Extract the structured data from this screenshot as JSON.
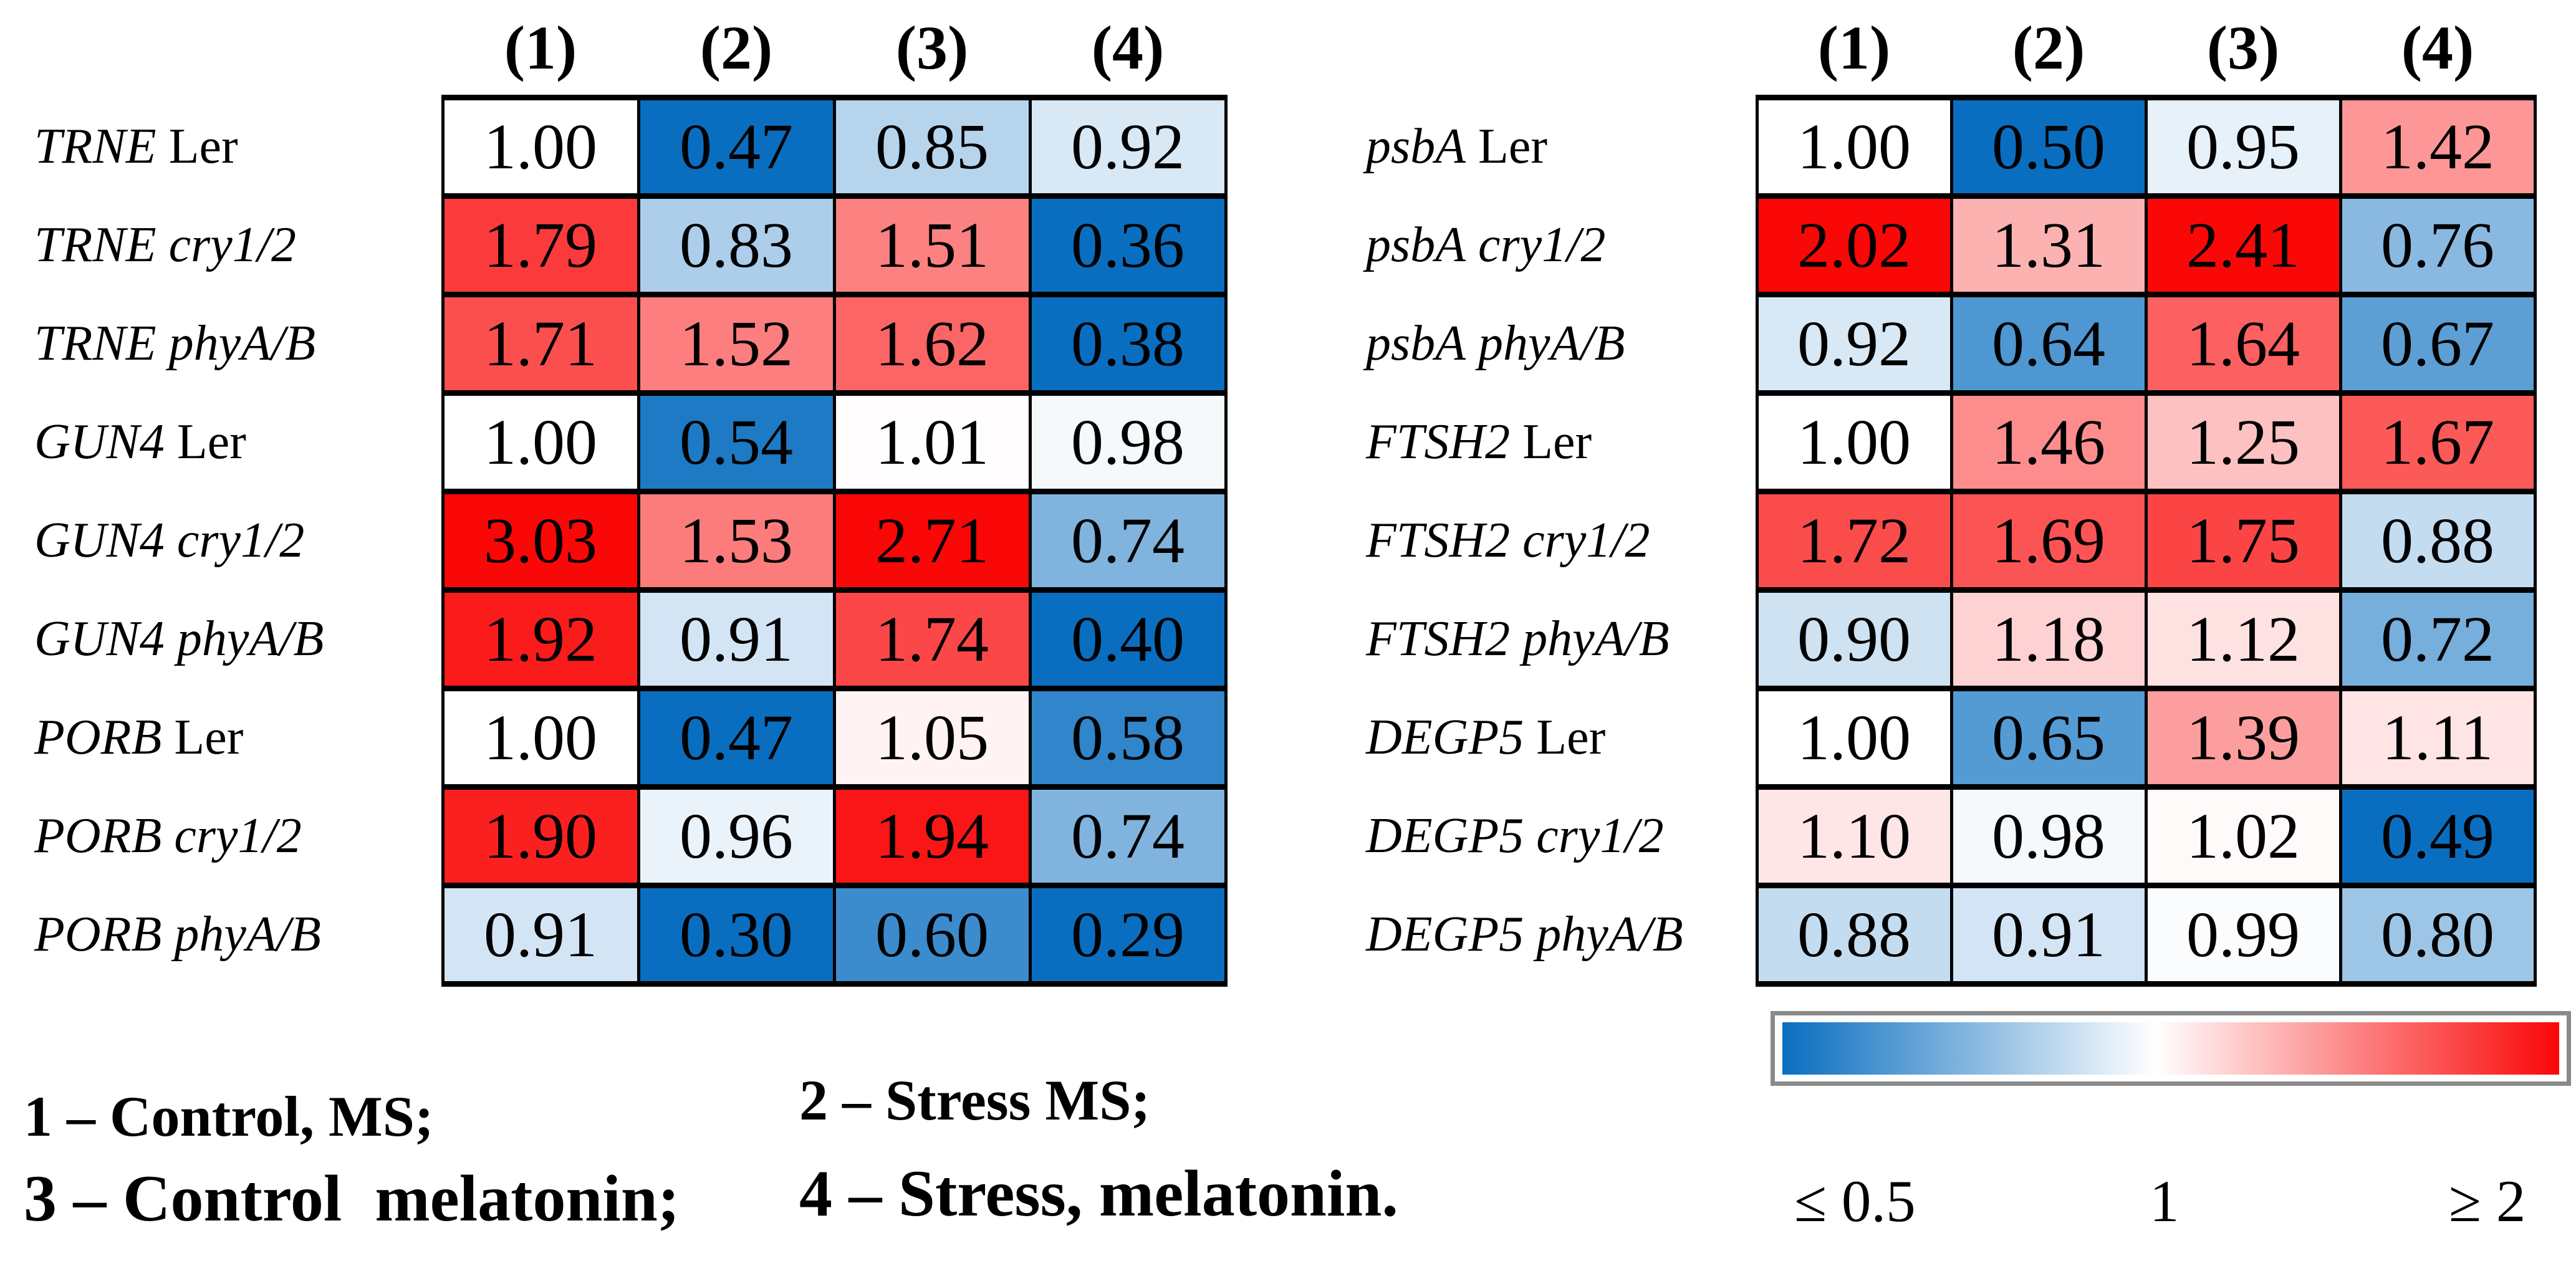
{
  "chart_data": {
    "type": "heatmap",
    "columns": [
      "(1)",
      "(2)",
      "(3)",
      "(4)"
    ],
    "panels": [
      {
        "name": "left",
        "rows": [
          {
            "gene": "TRNE",
            "genotype": "Ler",
            "values": [
              "1.00",
              "0.47",
              "0.85",
              "0.92"
            ]
          },
          {
            "gene": "TRNE",
            "genotype": "cry1/2",
            "values": [
              "1.79",
              "0.83",
              "1.51",
              "0.36"
            ]
          },
          {
            "gene": "TRNE",
            "genotype": "phyA/B",
            "values": [
              "1.71",
              "1.52",
              "1.62",
              "0.38"
            ]
          },
          {
            "gene": "GUN4",
            "genotype": "Ler",
            "values": [
              "1.00",
              "0.54",
              "1.01",
              "0.98"
            ]
          },
          {
            "gene": "GUN4",
            "genotype": "cry1/2",
            "values": [
              "3.03",
              "1.53",
              "2.71",
              "0.74"
            ]
          },
          {
            "gene": "GUN4",
            "genotype": "phyA/B",
            "values": [
              "1.92",
              "0.91",
              "1.74",
              "0.40"
            ]
          },
          {
            "gene": "PORB",
            "genotype": "Ler",
            "values": [
              "1.00",
              "0.47",
              "1.05",
              "0.58"
            ]
          },
          {
            "gene": "PORB",
            "genotype": "cry1/2",
            "values": [
              "1.90",
              "0.96",
              "1.94",
              "0.74"
            ]
          },
          {
            "gene": "PORB",
            "genotype": "phyA/B",
            "values": [
              "0.91",
              "0.30",
              "0.60",
              "0.29"
            ]
          }
        ]
      },
      {
        "name": "right",
        "rows": [
          {
            "gene": "psbA",
            "genotype": "Ler",
            "values": [
              "1.00",
              "0.50",
              "0.95",
              "1.42"
            ]
          },
          {
            "gene": "psbA",
            "genotype": "cry1/2",
            "values": [
              "2.02",
              "1.31",
              "2.41",
              "0.76"
            ]
          },
          {
            "gene": "psbA",
            "genotype": "phyA/B",
            "values": [
              "0.92",
              "0.64",
              "1.64",
              "0.67"
            ]
          },
          {
            "gene": "FTSH2",
            "genotype": "Ler",
            "values": [
              "1.00",
              "1.46",
              "1.25",
              "1.67"
            ]
          },
          {
            "gene": "FTSH2",
            "genotype": "cry1/2",
            "values": [
              "1.72",
              "1.69",
              "1.75",
              "0.88"
            ]
          },
          {
            "gene": "FTSH2",
            "genotype": "phyA/B",
            "values": [
              "0.90",
              "1.18",
              "1.12",
              "0.72"
            ]
          },
          {
            "gene": "DEGP5",
            "genotype": "Ler",
            "values": [
              "1.00",
              "0.65",
              "1.39",
              "1.11"
            ]
          },
          {
            "gene": "DEGP5",
            "genotype": "cry1/2",
            "values": [
              "1.10",
              "0.98",
              "1.02",
              "0.49"
            ]
          },
          {
            "gene": "DEGP5",
            "genotype": "phyA/B",
            "values": [
              "0.88",
              "0.91",
              "0.99",
              "0.80"
            ]
          }
        ]
      }
    ],
    "colormap": {
      "min_color": "#0A6EC0",
      "mid_color": "#FFFFFF",
      "max_color": "#FA0707",
      "domain": [
        0.5,
        1,
        2
      ],
      "legend_labels": [
        "≤ 0.5",
        "1",
        "≥ 2"
      ],
      "legend_position": "bottom-right"
    },
    "conditions": [
      "1 – Control, MS;",
      "2 – Stress MS;",
      "3 – Control  melatonin;",
      "4 – Stress, melatonin."
    ]
  }
}
